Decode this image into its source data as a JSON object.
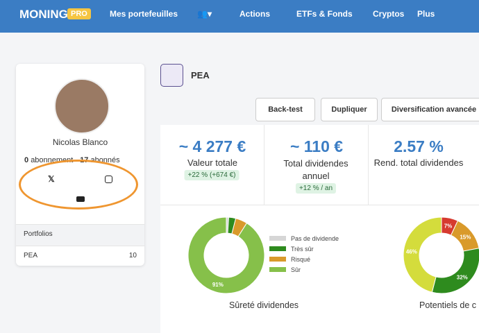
{
  "nav": {
    "logo": "MONING",
    "badge": "PRO",
    "items": [
      "Mes portefeuilles",
      "Actions",
      "ETFs & Fonds",
      "Cryptos",
      "Plus"
    ]
  },
  "profile": {
    "name": "Nicolas Blanco",
    "following_count": "0",
    "following_label": "abonnement",
    "followers_count": "17",
    "followers_label": "abonnés"
  },
  "portfolios": {
    "title": "Portfolios",
    "rows": [
      {
        "name": "PEA",
        "count": "10"
      }
    ]
  },
  "portfolio": {
    "name": "PEA",
    "buttons": [
      "Back-test",
      "Dupliquer",
      "Diversification avancée"
    ]
  },
  "stats": [
    {
      "value": "~ 4 277 €",
      "label": "Valeur totale",
      "change": "+22 % (+674 €)"
    },
    {
      "value": "~ 110 €",
      "label": "Total dividendes annuel",
      "change": "+12 % / an"
    },
    {
      "value": "2.57 %",
      "label": "Rend. total dividendes"
    }
  ],
  "chart_data": [
    {
      "type": "donut",
      "title": "Sûreté dividendes",
      "categories": [
        "Pas de dividende",
        "Très sûr",
        "Risqué",
        "Sûr"
      ],
      "values": [
        1,
        3,
        5,
        91
      ],
      "value_labels": [
        null,
        null,
        null,
        "91%"
      ],
      "colors": [
        "#d6d6d6",
        "#2e8b1e",
        "#d99a2b",
        "#86c04a"
      ],
      "legend": true
    },
    {
      "type": "donut",
      "title": "Potentiels de c",
      "values": [
        7,
        15,
        32,
        46
      ],
      "value_labels": [
        "7%",
        "15%",
        "32%",
        "46%"
      ],
      "colors": [
        "#d63a2f",
        "#d99a2b",
        "#2e8b1e",
        "#d4dc3c"
      ],
      "legend": false
    }
  ]
}
